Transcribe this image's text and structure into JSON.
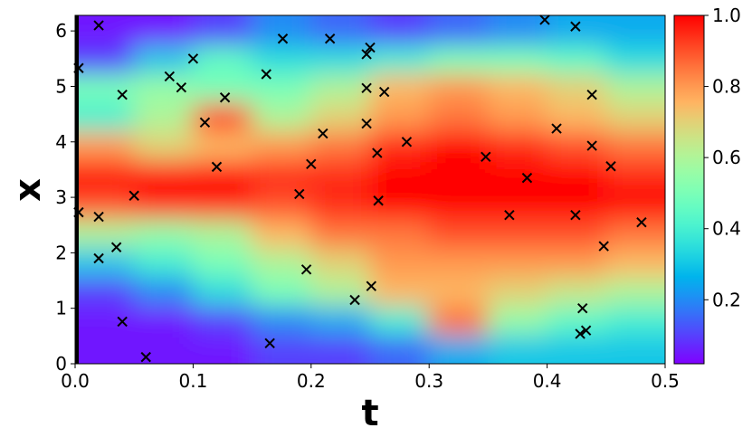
{
  "chart_data": {
    "type": "heatmap",
    "xlabel": "t",
    "ylabel": "x",
    "xlim": [
      0,
      0.5
    ],
    "ylim": [
      0,
      6.28
    ],
    "xticks": [
      {
        "value": 0,
        "label": "0.0"
      },
      {
        "value": 0.1,
        "label": "0.1"
      },
      {
        "value": 0.2,
        "label": "0.2"
      },
      {
        "value": 0.3,
        "label": "0.3"
      },
      {
        "value": 0.4,
        "label": "0.4"
      },
      {
        "value": 0.5,
        "label": "0.5"
      }
    ],
    "yticks": [
      0,
      1,
      2,
      3,
      4,
      5,
      6
    ],
    "colormap": "rainbow",
    "clim": [
      0.02,
      1.0
    ],
    "cticks": [
      0.2,
      0.4,
      0.6,
      0.8,
      {
        "value": 1.0,
        "label": "1.0"
      }
    ],
    "z": [
      [
        0.05,
        0.05,
        0.05,
        0.1,
        0.1,
        0.15,
        0.25,
        0.3,
        0.3,
        0.3
      ],
      [
        0.05,
        0.05,
        0.1,
        0.2,
        0.25,
        0.4,
        0.85,
        0.55,
        0.45,
        0.4
      ],
      [
        0.1,
        0.2,
        0.35,
        0.5,
        0.6,
        0.75,
        0.75,
        0.7,
        0.65,
        0.6
      ],
      [
        0.3,
        0.4,
        0.5,
        0.6,
        0.7,
        0.8,
        0.8,
        0.8,
        0.8,
        0.75
      ],
      [
        0.6,
        0.55,
        0.6,
        0.75,
        0.85,
        0.85,
        0.9,
        0.9,
        0.9,
        0.85
      ],
      [
        0.9,
        0.95,
        0.95,
        0.9,
        0.95,
        1,
        1,
        1,
        1,
        1
      ],
      [
        1,
        1,
        1,
        0.95,
        0.95,
        1,
        1,
        1,
        1,
        0.95
      ],
      [
        0.8,
        0.7,
        0.75,
        0.8,
        0.85,
        0.95,
        1,
        0.95,
        0.9,
        0.85
      ],
      [
        0.4,
        0.6,
        0.9,
        0.6,
        0.7,
        0.8,
        0.85,
        0.8,
        0.75,
        0.7
      ],
      [
        0.5,
        0.55,
        0.5,
        0.5,
        0.6,
        0.75,
        0.8,
        0.75,
        0.7,
        0.6
      ],
      [
        0.1,
        0.3,
        0.45,
        0.35,
        0.35,
        0.4,
        0.5,
        0.5,
        0.45,
        0.35
      ],
      [
        0.05,
        0.05,
        0.1,
        0.2,
        0.15,
        0.1,
        0.15,
        0.2,
        0.25,
        0.25
      ]
    ],
    "points": {
      "color": "#000000",
      "x": [
        0.003,
        0.02,
        0.04,
        0.08,
        0.09,
        0.1,
        0.127,
        0.11,
        0.12,
        0.05,
        0.02,
        0.003,
        0.035,
        0.02,
        0.04,
        0.06,
        0.165,
        0.162,
        0.176,
        0.216,
        0.25,
        0.247,
        0.247,
        0.262,
        0.247,
        0.21,
        0.2,
        0.256,
        0.281,
        0.19,
        0.257,
        0.196,
        0.237,
        0.251,
        0.348,
        0.383,
        0.368,
        0.398,
        0.424,
        0.408,
        0.438,
        0.438,
        0.454,
        0.424,
        0.448,
        0.48,
        0.43,
        0.433,
        0.428
      ],
      "y": [
        5.33,
        6.1,
        4.85,
        5.18,
        4.98,
        5.5,
        4.8,
        4.35,
        3.55,
        3.03,
        2.65,
        2.73,
        2.1,
        1.9,
        0.76,
        0.12,
        0.37,
        5.22,
        5.86,
        5.86,
        5.7,
        5.58,
        4.97,
        4.9,
        4.33,
        4.15,
        3.6,
        3.8,
        4.0,
        3.06,
        2.94,
        1.7,
        1.15,
        1.4,
        3.73,
        3.35,
        2.68,
        6.2,
        6.08,
        4.24,
        4.85,
        3.93,
        3.56,
        2.68,
        2.12,
        2.55,
        1.0,
        0.6,
        0.54
      ]
    }
  }
}
